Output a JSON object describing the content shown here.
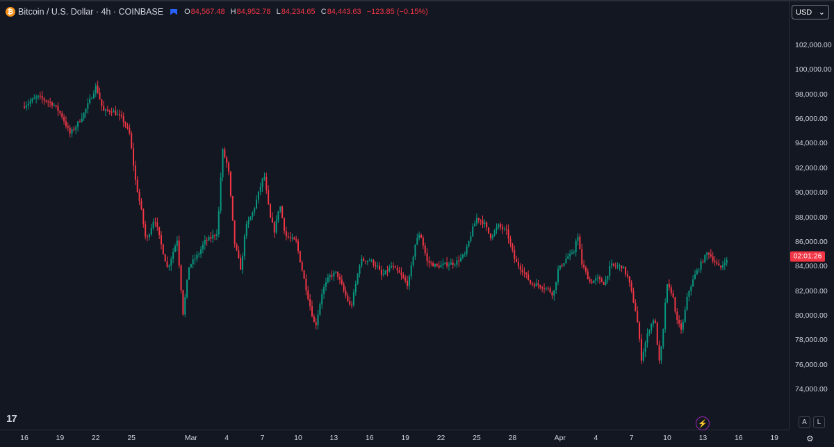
{
  "header": {
    "symbol_icon": "bitcoin-icon",
    "title": "Bitcoin / U.S. Dollar · 4h · COINBASE",
    "ohlc": {
      "o_label": "O",
      "o": "84,567.48",
      "h_label": "H",
      "h": "84,952.78",
      "l_label": "L",
      "l": "84,234.65",
      "c_label": "C",
      "c": "84,443.63",
      "change": "−123.85 (−0.15%)"
    }
  },
  "currency_select": {
    "value": "USD"
  },
  "current_price_countdown": "02:01:26",
  "logo_text": "17",
  "bottom_buttons": {
    "auto": "A",
    "log": "L"
  },
  "colors": {
    "up": "#089981",
    "down": "#f23645",
    "background": "#131722",
    "grid": "#2a2e39"
  },
  "chart_data": {
    "type": "candlestick",
    "title": "Bitcoin / U.S. Dollar · 4h · COINBASE",
    "ylim": [
      72000,
      104000
    ],
    "y_ticks": [
      "102,000.00",
      "100,000.00",
      "98,000.00",
      "96,000.00",
      "94,000.00",
      "92,000.00",
      "90,000.00",
      "88,000.00",
      "86,000.00",
      "84,000.00",
      "82,000.00",
      "80,000.00",
      "78,000.00",
      "76,000.00",
      "74,000.00"
    ],
    "y_tick_values": [
      102000,
      100000,
      98000,
      96000,
      94000,
      92000,
      90000,
      88000,
      86000,
      84000,
      82000,
      80000,
      78000,
      76000,
      74000
    ],
    "x_ticks": [
      "16",
      "19",
      "22",
      "25",
      "Mar",
      "4",
      "7",
      "10",
      "13",
      "16",
      "19",
      "22",
      "25",
      "28",
      "Apr",
      "4",
      "7",
      "10",
      "13",
      "16",
      "19"
    ],
    "x_tick_days": [
      0,
      3,
      6,
      9,
      14,
      17,
      20,
      23,
      26,
      29,
      32,
      35,
      38,
      41,
      45,
      48,
      51,
      54,
      57,
      60,
      63
    ],
    "start_label": "Feb 16",
    "last_close": 84443.63,
    "price_path": [
      [
        0,
        97000
      ],
      [
        1.3,
        97800
      ],
      [
        2.6,
        97200
      ],
      [
        3.3,
        96300
      ],
      [
        4.0,
        94800
      ],
      [
        4.5,
        95400
      ],
      [
        5.2,
        96500
      ],
      [
        5.8,
        97800
      ],
      [
        6.2,
        98700
      ],
      [
        6.8,
        96600
      ],
      [
        7.5,
        96700
      ],
      [
        8.4,
        96000
      ],
      [
        9.0,
        94800
      ],
      [
        9.5,
        91000
      ],
      [
        10.0,
        88500
      ],
      [
        10.4,
        86000
      ],
      [
        11.1,
        88000
      ],
      [
        11.6,
        86000
      ],
      [
        12.2,
        83800
      ],
      [
        13.0,
        86200
      ],
      [
        13.5,
        80200
      ],
      [
        14.0,
        84000
      ],
      [
        14.8,
        85000
      ],
      [
        15.3,
        86000
      ],
      [
        15.8,
        86300
      ],
      [
        16.4,
        86800
      ],
      [
        16.8,
        93500
      ],
      [
        17.3,
        92000
      ],
      [
        17.8,
        86000
      ],
      [
        18.4,
        83600
      ],
      [
        18.7,
        87000
      ],
      [
        19.4,
        88500
      ],
      [
        20.0,
        90500
      ],
      [
        20.3,
        91500
      ],
      [
        20.8,
        88000
      ],
      [
        21.2,
        86800
      ],
      [
        21.6,
        89200
      ],
      [
        22.1,
        86500
      ],
      [
        23.0,
        86000
      ],
      [
        23.7,
        82800
      ],
      [
        24.0,
        81500
      ],
      [
        24.6,
        79000
      ],
      [
        25.2,
        82000
      ],
      [
        25.8,
        83200
      ],
      [
        26.4,
        83500
      ],
      [
        27.0,
        82000
      ],
      [
        27.6,
        80600
      ],
      [
        28.4,
        84500
      ],
      [
        29.2,
        84500
      ],
      [
        29.8,
        84000
      ],
      [
        30.2,
        83200
      ],
      [
        31.0,
        84000
      ],
      [
        31.6,
        83500
      ],
      [
        32.4,
        82500
      ],
      [
        33.0,
        85800
      ],
      [
        33.4,
        86800
      ],
      [
        34.0,
        84400
      ],
      [
        34.8,
        84000
      ],
      [
        35.7,
        84200
      ],
      [
        36.4,
        84300
      ],
      [
        37.2,
        85000
      ],
      [
        37.8,
        87000
      ],
      [
        38.2,
        88000
      ],
      [
        38.8,
        87500
      ],
      [
        39.3,
        86400
      ],
      [
        40.0,
        87300
      ],
      [
        40.7,
        86800
      ],
      [
        41.4,
        84400
      ],
      [
        42.1,
        83600
      ],
      [
        42.7,
        82600
      ],
      [
        43.3,
        82500
      ],
      [
        44.1,
        82200
      ],
      [
        44.6,
        81700
      ],
      [
        45.0,
        83700
      ],
      [
        45.8,
        84800
      ],
      [
        46.3,
        85000
      ],
      [
        46.6,
        86800
      ],
      [
        47.0,
        84200
      ],
      [
        47.7,
        82700
      ],
      [
        48.3,
        83000
      ],
      [
        48.9,
        82600
      ],
      [
        49.4,
        84100
      ],
      [
        49.9,
        84000
      ],
      [
        50.4,
        84000
      ],
      [
        50.9,
        83000
      ],
      [
        51.6,
        80000
      ],
      [
        52.0,
        76500
      ],
      [
        52.6,
        78800
      ],
      [
        53.1,
        79900
      ],
      [
        53.5,
        76200
      ],
      [
        53.8,
        78300
      ],
      [
        54.1,
        82500
      ],
      [
        54.6,
        81800
      ],
      [
        55.0,
        79500
      ],
      [
        55.4,
        78800
      ],
      [
        55.9,
        81800
      ],
      [
        56.5,
        83300
      ],
      [
        57.1,
        84400
      ],
      [
        57.6,
        85200
      ],
      [
        58.0,
        84600
      ],
      [
        58.6,
        83800
      ],
      [
        59.0,
        84443
      ]
    ]
  }
}
